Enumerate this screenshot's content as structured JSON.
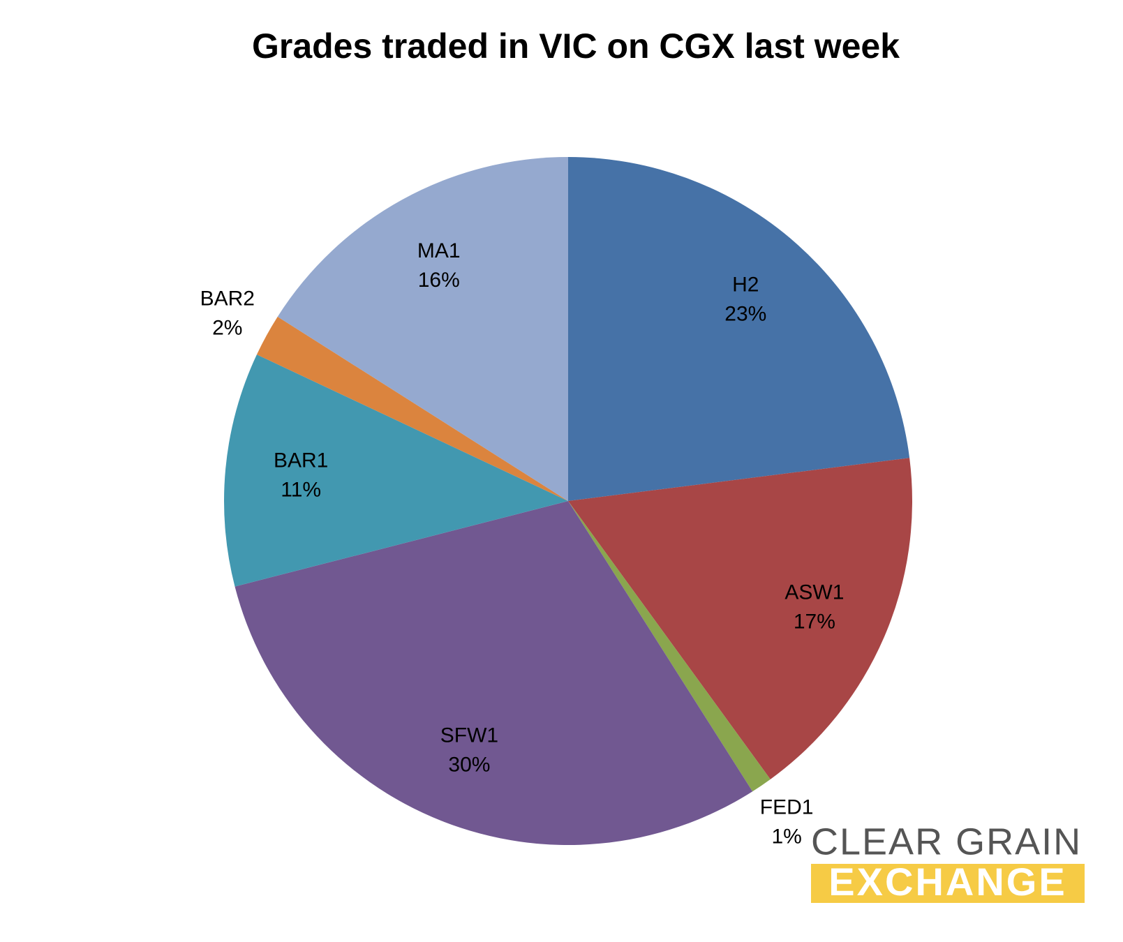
{
  "chart_data": {
    "type": "pie",
    "title": "Grades traded in VIC on CGX last week",
    "categories": [
      "H2",
      "ASW1",
      "FED1",
      "SFW1",
      "BAR1",
      "BAR2",
      "MA1"
    ],
    "values": [
      23,
      17,
      1,
      30,
      11,
      2,
      16
    ],
    "value_labels": [
      "23%",
      "17%",
      "1%",
      "30%",
      "11%",
      "2%",
      "16%"
    ],
    "colors": [
      "#4672a7",
      "#a84646",
      "#8aa64e",
      "#715891",
      "#4298b0",
      "#db843e",
      "#95a9cf"
    ]
  },
  "logo": {
    "line1": "CLEAR GRAIN",
    "line2": "EXCHANGE"
  }
}
